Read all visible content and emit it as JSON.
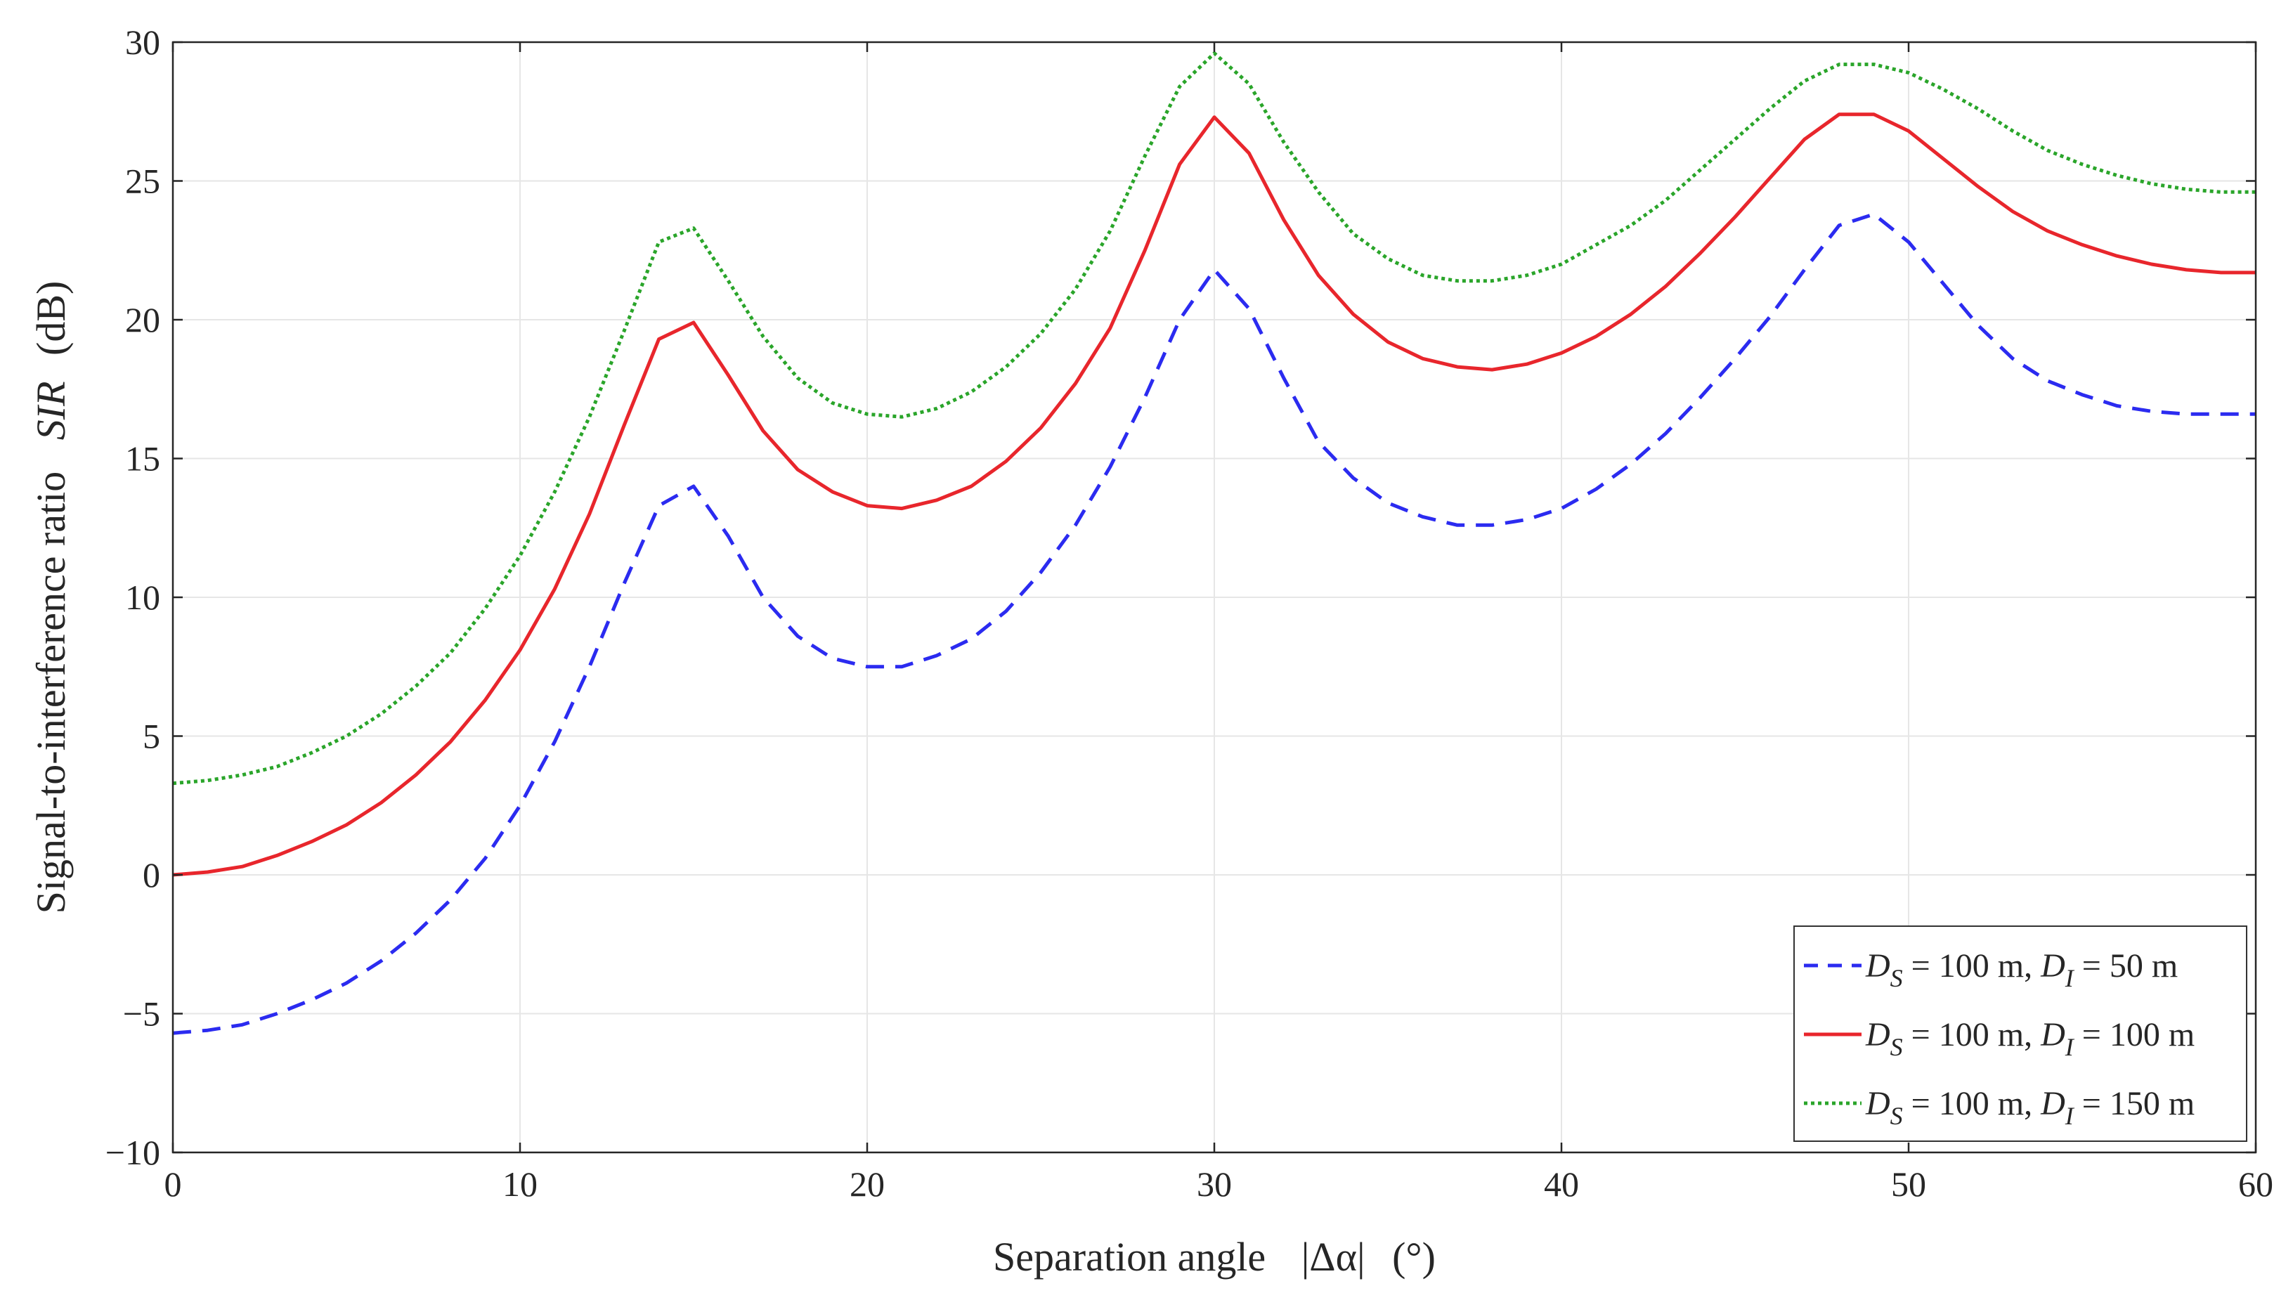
{
  "chart_data": {
    "type": "line",
    "title": "",
    "xlabel": "Separation angle",
    "xlabel_symbol": "|Δα|",
    "xlabel_unit": "(°)",
    "ylabel": "Signal-to-interference ratio",
    "ylabel_symbol": "SIR",
    "ylabel_unit": "(dB)",
    "xlim": [
      0,
      60
    ],
    "ylim": [
      -10,
      30
    ],
    "xticks": [
      0,
      10,
      20,
      30,
      40,
      50,
      60
    ],
    "yticks": [
      -10,
      -5,
      0,
      5,
      10,
      15,
      20,
      25,
      30
    ],
    "ytick_labels": [
      "−10",
      "−5",
      "0",
      "5",
      "10",
      "15",
      "20",
      "25",
      "30"
    ],
    "grid": true,
    "legend_position": "bottom-right",
    "x": [
      0,
      1,
      2,
      3,
      4,
      5,
      6,
      7,
      8,
      9,
      10,
      11,
      12,
      13,
      14,
      15,
      16,
      17,
      18,
      19,
      20,
      21,
      22,
      23,
      24,
      25,
      26,
      27,
      28,
      29,
      30,
      31,
      32,
      33,
      34,
      35,
      36,
      37,
      38,
      39,
      40,
      41,
      42,
      43,
      44,
      45,
      46,
      47,
      48,
      49,
      50,
      51,
      52,
      53,
      54,
      55,
      56,
      57,
      58,
      59,
      60
    ],
    "series": [
      {
        "name": "D_S = 100 m, D_I = 50 m",
        "legend": {
          "a": "D",
          "a_sub": "S",
          "mid": " = 100 m, ",
          "b": "D",
          "b_sub": "I",
          "end": " =   50 m"
        },
        "color": "#2b2bf0",
        "style": "dashed",
        "values": [
          -5.7,
          -5.6,
          -5.4,
          -5.0,
          -4.5,
          -3.9,
          -3.1,
          -2.1,
          -0.9,
          0.6,
          2.5,
          4.8,
          7.5,
          10.5,
          13.3,
          14.0,
          12.2,
          10.0,
          8.6,
          7.8,
          7.5,
          7.5,
          7.9,
          8.5,
          9.5,
          10.9,
          12.6,
          14.7,
          17.2,
          20.0,
          21.8,
          20.4,
          17.9,
          15.6,
          14.3,
          13.4,
          12.9,
          12.6,
          12.6,
          12.8,
          13.2,
          13.9,
          14.8,
          15.9,
          17.2,
          18.6,
          20.1,
          21.8,
          23.4,
          23.8,
          22.8,
          21.3,
          19.8,
          18.6,
          17.8,
          17.3,
          16.9,
          16.7,
          16.6,
          16.6,
          16.6
        ]
      },
      {
        "name": "D_S = 100 m, D_I = 100 m",
        "legend": {
          "a": "D",
          "a_sub": "S",
          "mid": " = 100 m, ",
          "b": "D",
          "b_sub": "I",
          "end": " = 100 m"
        },
        "color": "#e8262c",
        "style": "solid",
        "values": [
          0.0,
          0.1,
          0.3,
          0.7,
          1.2,
          1.8,
          2.6,
          3.6,
          4.8,
          6.3,
          8.1,
          10.3,
          13.0,
          16.2,
          19.3,
          19.9,
          18.0,
          16.0,
          14.6,
          13.8,
          13.3,
          13.2,
          13.5,
          14.0,
          14.9,
          16.1,
          17.7,
          19.7,
          22.5,
          25.6,
          27.3,
          26.0,
          23.6,
          21.6,
          20.2,
          19.2,
          18.6,
          18.3,
          18.2,
          18.4,
          18.8,
          19.4,
          20.2,
          21.2,
          22.4,
          23.7,
          25.1,
          26.5,
          27.4,
          27.4,
          26.8,
          25.8,
          24.8,
          23.9,
          23.2,
          22.7,
          22.3,
          22.0,
          21.8,
          21.7,
          21.7
        ]
      },
      {
        "name": "D_S = 100 m, D_I = 150 m",
        "legend": {
          "a": "D",
          "a_sub": "S",
          "mid": " = 100 m, ",
          "b": "D",
          "b_sub": "I",
          "end": " = 150 m"
        },
        "color": "#2aa52a",
        "style": "dotted",
        "values": [
          3.3,
          3.4,
          3.6,
          3.9,
          4.4,
          5.0,
          5.8,
          6.8,
          8.0,
          9.6,
          11.5,
          13.8,
          16.5,
          19.6,
          22.8,
          23.3,
          21.4,
          19.4,
          17.9,
          17.0,
          16.6,
          16.5,
          16.8,
          17.4,
          18.3,
          19.5,
          21.1,
          23.2,
          25.9,
          28.4,
          29.6,
          28.5,
          26.4,
          24.6,
          23.1,
          22.2,
          21.6,
          21.4,
          21.4,
          21.6,
          22.0,
          22.7,
          23.4,
          24.3,
          25.4,
          26.5,
          27.6,
          28.6,
          29.2,
          29.2,
          28.9,
          28.3,
          27.6,
          26.8,
          26.1,
          25.6,
          25.2,
          24.9,
          24.7,
          24.6,
          24.6
        ]
      }
    ]
  }
}
